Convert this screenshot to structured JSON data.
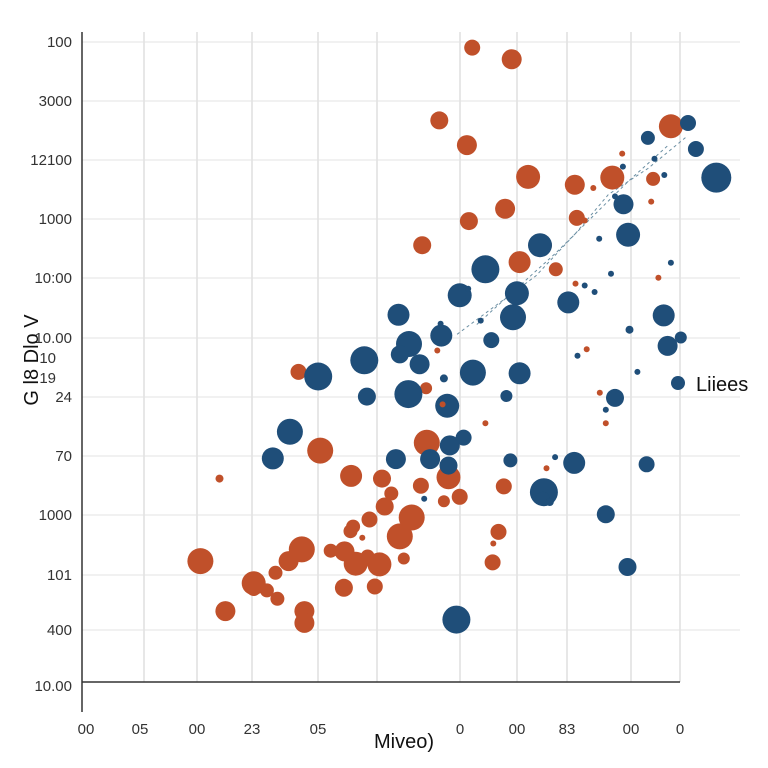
{
  "chart_data": {
    "type": "scatter",
    "xlabel": "Miveo)",
    "ylabel": "G l8 Dlo V",
    "grid": true,
    "legend_position": "right",
    "legend": [
      {
        "label": "Liiees",
        "color": "#1f4e79"
      }
    ],
    "colors": {
      "blue": "#1f4e79",
      "orange": "#c0502a",
      "trend": "#6b8fa3",
      "grid": "#cfcfcf"
    },
    "x_ticks": [
      "00",
      "05",
      "00",
      "23",
      "05",
      "0",
      "00",
      "83",
      "00",
      "0"
    ],
    "y_ticks": [
      "100",
      "3000",
      "12100",
      "1000",
      "10:00",
      "10.00",
      "24",
      "70",
      "1000",
      "101",
      "400",
      "10.00"
    ],
    "y_extra_labels": [
      "10",
      "19"
    ],
    "xlim": [
      0,
      100
    ],
    "ylim": [
      0,
      100
    ],
    "series": [
      {
        "color": "orange",
        "points": [
          [
            59.3,
            97.6,
            8
          ],
          [
            65.3,
            95.8,
            10
          ],
          [
            54.3,
            86.4,
            9
          ],
          [
            58.5,
            82.6,
            10
          ],
          [
            67.8,
            77.7,
            12
          ],
          [
            74.9,
            76.5,
            10
          ],
          [
            64.3,
            72.8,
            10
          ],
          [
            58.8,
            70.9,
            9
          ],
          [
            51.7,
            67.2,
            9
          ],
          [
            66.5,
            64.6,
            11
          ],
          [
            75.2,
            71.4,
            8
          ],
          [
            70.2,
            67.2,
            8
          ],
          [
            72.0,
            63.5,
            7
          ],
          [
            80.6,
            77.6,
            12
          ],
          [
            89.5,
            85.5,
            12
          ],
          [
            86.8,
            77.4,
            7
          ],
          [
            32.9,
            47.7,
            8
          ],
          [
            36.2,
            35.6,
            13
          ],
          [
            40.9,
            31.7,
            11
          ],
          [
            52.4,
            36.8,
            13
          ],
          [
            45.6,
            31.3,
            9
          ],
          [
            46.0,
            27.0,
            9
          ],
          [
            43.7,
            25.0,
            8
          ],
          [
            41.2,
            23.9,
            7
          ],
          [
            33.4,
            20.4,
            13
          ],
          [
            31.4,
            18.6,
            10
          ],
          [
            29.4,
            16.8,
            7
          ],
          [
            37.8,
            20.2,
            7
          ],
          [
            41.6,
            18.2,
            12
          ],
          [
            39.8,
            14.5,
            9
          ],
          [
            48.3,
            22.4,
            13
          ],
          [
            50.1,
            25.3,
            13
          ],
          [
            47.0,
            29.0,
            7
          ],
          [
            20.9,
            31.3,
            4
          ],
          [
            18.0,
            18.6,
            13
          ],
          [
            26.1,
            15.2,
            12
          ],
          [
            21.8,
            10.9,
            10
          ],
          [
            29.7,
            12.8,
            7
          ],
          [
            33.8,
            10.9,
            10
          ],
          [
            26.1,
            14.3,
            7
          ],
          [
            28.1,
            14.1,
            7
          ],
          [
            40.8,
            23.2,
            7
          ],
          [
            43.4,
            19.3,
            7
          ],
          [
            44.5,
            14.7,
            8
          ],
          [
            39.9,
            20.1,
            10
          ],
          [
            33.8,
            9.1,
            10
          ],
          [
            55.7,
            31.5,
            12
          ],
          [
            51.5,
            30.2,
            8
          ],
          [
            57.4,
            28.5,
            8
          ],
          [
            62.4,
            18.4,
            8
          ],
          [
            64.1,
            30.1,
            8
          ],
          [
            52.3,
            45.2,
            6
          ],
          [
            63.3,
            23.1,
            8
          ],
          [
            45.2,
            18.1,
            12
          ],
          [
            55.0,
            27.8,
            6
          ],
          [
            48.9,
            19.0,
            6
          ]
        ]
      },
      {
        "color": "blue",
        "points": [
          [
            93.3,
            82.0,
            8
          ],
          [
            96.4,
            77.6,
            15
          ],
          [
            82.3,
            73.5,
            10
          ],
          [
            83.0,
            68.8,
            12
          ],
          [
            69.6,
            67.2,
            12
          ],
          [
            61.3,
            63.5,
            14
          ],
          [
            57.4,
            59.5,
            12
          ],
          [
            66.1,
            59.8,
            12
          ],
          [
            73.9,
            58.4,
            11
          ],
          [
            88.4,
            56.4,
            11
          ],
          [
            48.1,
            56.5,
            11
          ],
          [
            54.6,
            53.3,
            11
          ],
          [
            49.7,
            52.0,
            13
          ],
          [
            65.5,
            56.1,
            13
          ],
          [
            62.2,
            52.6,
            8
          ],
          [
            48.3,
            50.4,
            9
          ],
          [
            51.3,
            48.9,
            10
          ],
          [
            59.4,
            47.6,
            13
          ],
          [
            66.5,
            47.5,
            11
          ],
          [
            42.9,
            49.5,
            14
          ],
          [
            35.9,
            47.0,
            14
          ],
          [
            49.6,
            44.3,
            14
          ],
          [
            55.5,
            42.5,
            12
          ],
          [
            43.3,
            43.9,
            9
          ],
          [
            31.6,
            38.5,
            13
          ],
          [
            29.0,
            34.4,
            11
          ],
          [
            47.7,
            34.3,
            10
          ],
          [
            55.7,
            33.3,
            9
          ],
          [
            55.9,
            36.4,
            10
          ],
          [
            58.0,
            37.6,
            8
          ],
          [
            52.9,
            34.3,
            10
          ],
          [
            70.2,
            29.2,
            14
          ],
          [
            74.8,
            33.7,
            11
          ],
          [
            79.6,
            25.8,
            9
          ],
          [
            85.8,
            33.5,
            8
          ],
          [
            65.1,
            34.1,
            7
          ],
          [
            70.0,
            28.2,
            7
          ],
          [
            82.9,
            17.7,
            9
          ],
          [
            56.9,
            9.6,
            14
          ],
          [
            81.0,
            43.7,
            9
          ],
          [
            89.0,
            51.7,
            10
          ],
          [
            91.0,
            53.0,
            6
          ],
          [
            92.1,
            86.0,
            8
          ],
          [
            86.0,
            83.7,
            7
          ],
          [
            71.1,
            27.7,
            4
          ],
          [
            64.5,
            44.0,
            6
          ]
        ]
      },
      {
        "color": "blue",
        "points": [
          [
            54.5,
            55.1,
            3
          ],
          [
            58.7,
            60.5,
            3
          ],
          [
            55.0,
            46.7,
            4
          ],
          [
            60.6,
            55.6,
            3
          ],
          [
            81.0,
            74.7,
            3
          ],
          [
            78.6,
            68.2,
            3
          ],
          [
            87.0,
            80.5,
            3
          ],
          [
            88.5,
            78.0,
            3
          ],
          [
            83.2,
            54.2,
            4
          ],
          [
            77.9,
            60.0,
            3
          ],
          [
            75.3,
            50.2,
            3
          ],
          [
            71.9,
            34.6,
            3
          ],
          [
            79.6,
            41.9,
            3
          ],
          [
            84.4,
            47.7,
            3
          ],
          [
            89.5,
            64.5,
            3
          ],
          [
            52.0,
            28.2,
            3
          ],
          [
            80.4,
            62.8,
            3
          ],
          [
            76.4,
            61.0,
            3
          ],
          [
            82.2,
            79.3,
            3
          ]
        ]
      },
      {
        "color": "orange",
        "points": [
          [
            82.1,
            81.3,
            3
          ],
          [
            77.7,
            76.0,
            3
          ],
          [
            76.4,
            71.0,
            3
          ],
          [
            75.0,
            61.3,
            3
          ],
          [
            86.5,
            73.9,
            3
          ],
          [
            87.6,
            62.2,
            3
          ],
          [
            76.7,
            51.2,
            3
          ],
          [
            54.0,
            51.0,
            3
          ],
          [
            54.8,
            42.7,
            3
          ],
          [
            61.3,
            39.8,
            3
          ],
          [
            78.7,
            44.5,
            3
          ],
          [
            79.6,
            39.8,
            3
          ],
          [
            70.6,
            32.9,
            3
          ],
          [
            62.5,
            21.3,
            3
          ],
          [
            43.8,
            25.3,
            3
          ],
          [
            42.6,
            22.2,
            3
          ]
        ]
      }
    ],
    "trend_lines": [
      [
        [
          57.0,
          53.5
        ],
        [
          63.0,
          58.0
        ],
        [
          69.0,
          62.5
        ],
        [
          75.0,
          69.0
        ],
        [
          80.0,
          75.0
        ],
        [
          86.0,
          79.0
        ],
        [
          92.0,
          84.0
        ]
      ],
      [
        [
          60.0,
          55.0
        ],
        [
          66.0,
          60.5
        ],
        [
          72.0,
          66.0
        ],
        [
          78.0,
          72.0
        ],
        [
          83.0,
          77.0
        ],
        [
          89.0,
          82.5
        ]
      ]
    ]
  }
}
